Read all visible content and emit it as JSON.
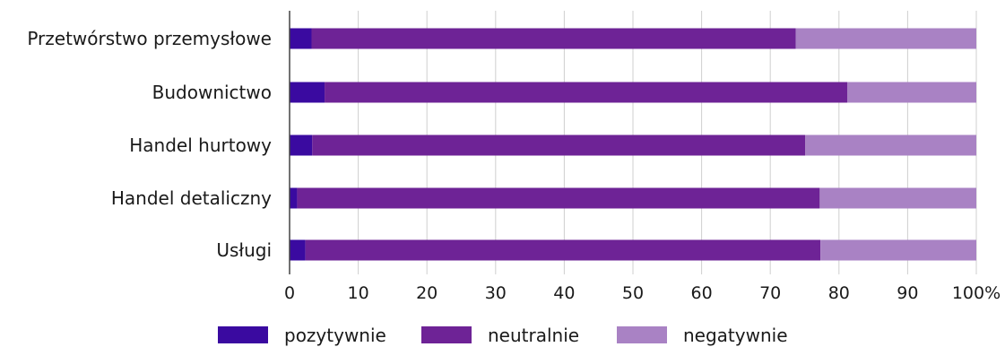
{
  "chart_data": {
    "type": "bar",
    "orientation": "horizontal",
    "stacked": true,
    "categories": [
      "Przetwórstwo przemysłowe",
      "Budownictwo",
      "Handel hurtowy",
      "Handel detaliczny",
      "Usługi"
    ],
    "series": [
      {
        "name": "pozytywnie",
        "color": "#3a0aa0",
        "values": [
          3.2,
          5.1,
          3.3,
          1.1,
          2.3
        ]
      },
      {
        "name": "neutralnie",
        "color": "#6e2396",
        "values": [
          70.5,
          76.1,
          71.8,
          76.1,
          75.0
        ]
      },
      {
        "name": "negatywnie",
        "color": "#a982c4",
        "values": [
          26.3,
          18.8,
          24.9,
          22.8,
          22.7
        ]
      }
    ],
    "x_ticks": [
      "0",
      "10",
      "20",
      "30",
      "40",
      "50",
      "60",
      "70",
      "80",
      "90",
      "100%"
    ],
    "xlim": [
      0,
      100
    ],
    "grid": "vertical",
    "legend_position": "bottom"
  }
}
